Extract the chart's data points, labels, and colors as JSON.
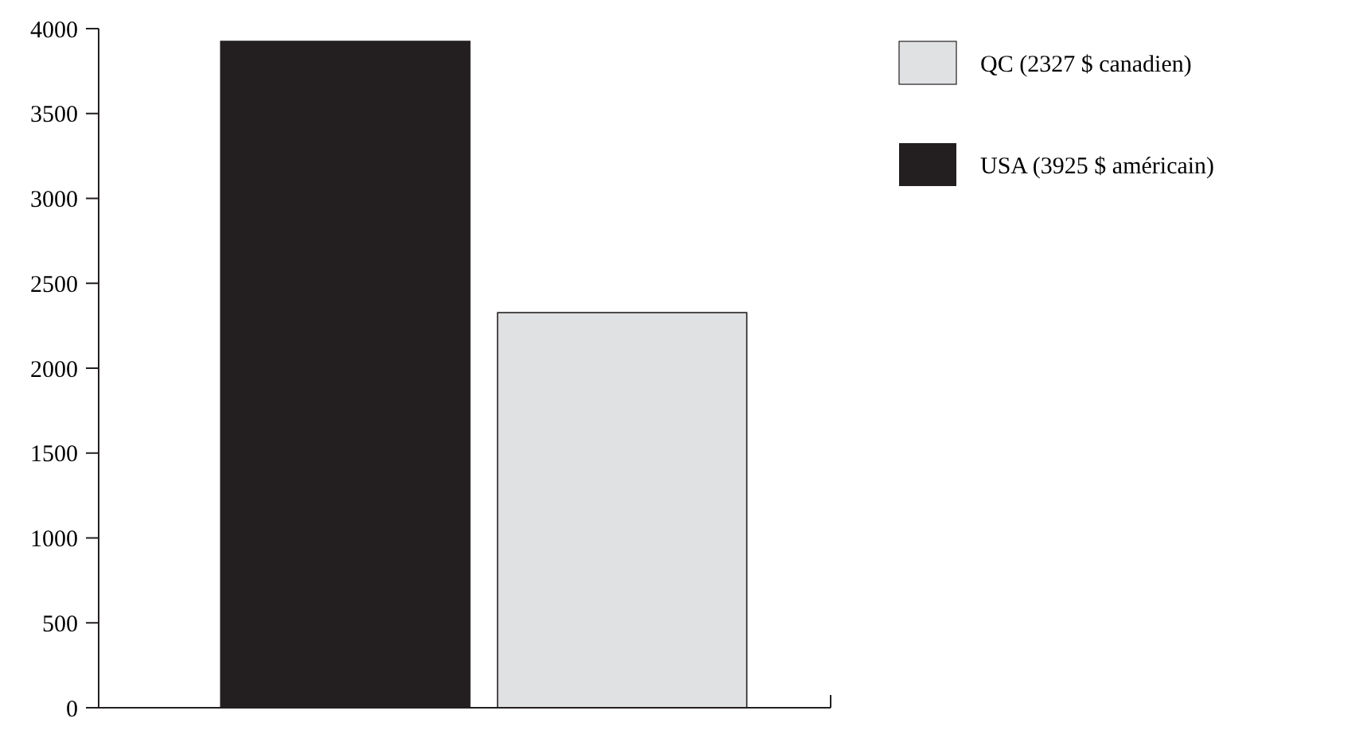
{
  "chart_data": {
    "type": "bar",
    "categories": [
      null,
      null
    ],
    "series": [
      {
        "name": "QC (2327 $ canadien)",
        "color": "#e0e1e3",
        "values": [
          null,
          2327
        ]
      },
      {
        "name": "USA (3925 $ américain)",
        "color": "#231f20",
        "values": [
          3925,
          null
        ]
      }
    ],
    "ylim": [
      0,
      4000
    ],
    "yticks": [
      0,
      500,
      1000,
      1500,
      2000,
      2500,
      3000,
      3500,
      4000
    ],
    "grid": false,
    "legend": "right"
  }
}
